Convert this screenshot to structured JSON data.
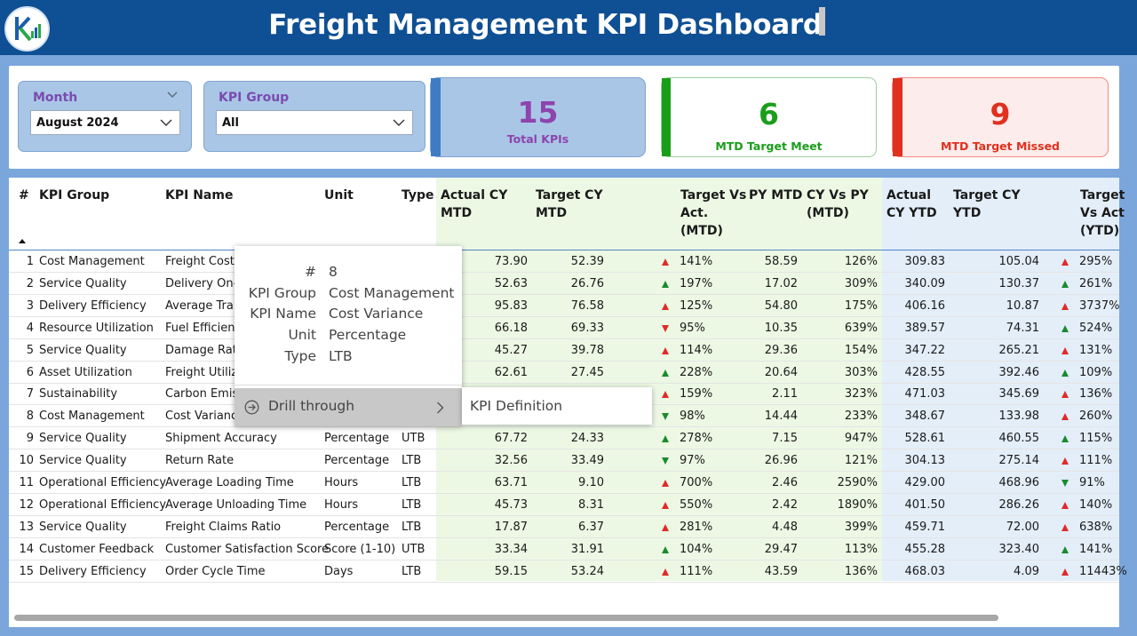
{
  "header": {
    "title": "Freight Management KPI Dashboard"
  },
  "slicers": {
    "month": {
      "label": "Month",
      "value": "August 2024"
    },
    "kpi_group": {
      "label": "KPI Group",
      "value": "All"
    }
  },
  "cards": {
    "total": {
      "value": "15",
      "label": "Total KPIs",
      "color": "#8e44ad"
    },
    "meet": {
      "value": "6",
      "label": "MTD Target Meet",
      "color": "#1a9e1a"
    },
    "missed": {
      "value": "9",
      "label": "MTD Target Missed",
      "color": "#e0301e"
    }
  },
  "table": {
    "headers": {
      "num": "#",
      "group": "KPI Group",
      "name": "KPI Name",
      "unit": "Unit",
      "type": "Type",
      "actual_mtd": [
        "Actual CY",
        "MTD"
      ],
      "target_mtd": [
        "Target CY",
        "MTD"
      ],
      "tva_mtd": [
        "Target Vs",
        "Act.",
        "(MTD)"
      ],
      "py_mtd": [
        "PY MTD"
      ],
      "cyvspy_mtd": [
        "CY Vs PY",
        "(MTD)"
      ],
      "actual_ytd": [
        "Actual",
        "CY YTD"
      ],
      "target_ytd": [
        "Target CY",
        "YTD"
      ],
      "tva_ytd": [
        "Target",
        "Vs Act",
        "(YTD)"
      ]
    },
    "rows": [
      {
        "num": "1",
        "group": "Cost Management",
        "name": "Freight Cost p",
        "unit": "",
        "type": "",
        "act_mtd": "73.90",
        "tgt_mtd": "52.39",
        "mtd_dir": "up-red",
        "tva_mtd": "141%",
        "py_mtd": "58.59",
        "cypy": "126%",
        "act_ytd": "309.83",
        "tgt_ytd": "105.04",
        "ytd_dir": "up-red",
        "tva_ytd": "295%"
      },
      {
        "num": "2",
        "group": "Service Quality",
        "name": "Delivery On-T",
        "unit": "",
        "type": "",
        "act_mtd": "52.63",
        "tgt_mtd": "26.76",
        "mtd_dir": "up-green",
        "tva_mtd": "197%",
        "py_mtd": "17.02",
        "cypy": "309%",
        "act_ytd": "340.09",
        "tgt_ytd": "130.37",
        "ytd_dir": "up-green",
        "tva_ytd": "261%"
      },
      {
        "num": "3",
        "group": "Delivery Efficiency",
        "name": "Average Tran",
        "unit": "",
        "type": "",
        "act_mtd": "95.83",
        "tgt_mtd": "76.58",
        "mtd_dir": "up-red",
        "tva_mtd": "125%",
        "py_mtd": "54.80",
        "cypy": "175%",
        "act_ytd": "406.16",
        "tgt_ytd": "10.87",
        "ytd_dir": "up-red",
        "tva_ytd": "3737%"
      },
      {
        "num": "4",
        "group": "Resource Utilization",
        "name": "Fuel Efficienc",
        "unit": "",
        "type": "",
        "act_mtd": "66.18",
        "tgt_mtd": "69.33",
        "mtd_dir": "down-red",
        "tva_mtd": "95%",
        "py_mtd": "10.35",
        "cypy": "639%",
        "act_ytd": "389.57",
        "tgt_ytd": "74.31",
        "ytd_dir": "up-green",
        "tva_ytd": "524%"
      },
      {
        "num": "5",
        "group": "Service Quality",
        "name": "Damage Rate",
        "unit": "",
        "type": "",
        "act_mtd": "45.27",
        "tgt_mtd": "39.78",
        "mtd_dir": "up-red",
        "tva_mtd": "114%",
        "py_mtd": "29.36",
        "cypy": "154%",
        "act_ytd": "347.22",
        "tgt_ytd": "265.21",
        "ytd_dir": "up-red",
        "tva_ytd": "131%"
      },
      {
        "num": "6",
        "group": "Asset Utilization",
        "name": "Freight Utiliz",
        "unit": "",
        "type": "",
        "act_mtd": "62.61",
        "tgt_mtd": "27.45",
        "mtd_dir": "up-green",
        "tva_mtd": "228%",
        "py_mtd": "20.64",
        "cypy": "303%",
        "act_ytd": "428.55",
        "tgt_ytd": "392.46",
        "ytd_dir": "up-green",
        "tva_ytd": "109%"
      },
      {
        "num": "7",
        "group": "Sustainability",
        "name": "Carbon Emiss",
        "unit": "",
        "type": "",
        "act_mtd": "",
        "tgt_mtd": "",
        "mtd_dir": "up-red",
        "tva_mtd": "159%",
        "py_mtd": "2.11",
        "cypy": "323%",
        "act_ytd": "471.03",
        "tgt_ytd": "345.69",
        "ytd_dir": "up-red",
        "tva_ytd": "136%"
      },
      {
        "num": "8",
        "group": "Cost Management",
        "name": "Cost Variance",
        "unit": "",
        "type": "",
        "act_mtd": "",
        "tgt_mtd": "",
        "mtd_dir": "down-green",
        "tva_mtd": "98%",
        "py_mtd": "14.44",
        "cypy": "233%",
        "act_ytd": "348.67",
        "tgt_ytd": "133.98",
        "ytd_dir": "up-red",
        "tva_ytd": "260%"
      },
      {
        "num": "9",
        "group": "Service Quality",
        "name": "Shipment Accuracy",
        "unit": "Percentage",
        "type": "UTB",
        "act_mtd": "67.72",
        "tgt_mtd": "24.33",
        "mtd_dir": "up-green",
        "tva_mtd": "278%",
        "py_mtd": "7.15",
        "cypy": "947%",
        "act_ytd": "528.61",
        "tgt_ytd": "460.55",
        "ytd_dir": "up-green",
        "tva_ytd": "115%"
      },
      {
        "num": "10",
        "group": "Service Quality",
        "name": "Return Rate",
        "unit": "Percentage",
        "type": "LTB",
        "act_mtd": "32.56",
        "tgt_mtd": "33.49",
        "mtd_dir": "down-green",
        "tva_mtd": "97%",
        "py_mtd": "26.96",
        "cypy": "121%",
        "act_ytd": "304.13",
        "tgt_ytd": "275.14",
        "ytd_dir": "up-red",
        "tva_ytd": "111%"
      },
      {
        "num": "11",
        "group": "Operational Efficiency",
        "name": "Average Loading Time",
        "unit": "Hours",
        "type": "LTB",
        "act_mtd": "63.71",
        "tgt_mtd": "9.10",
        "mtd_dir": "up-red",
        "tva_mtd": "700%",
        "py_mtd": "2.46",
        "cypy": "2590%",
        "act_ytd": "429.00",
        "tgt_ytd": "468.96",
        "ytd_dir": "down-green",
        "tva_ytd": "91%"
      },
      {
        "num": "12",
        "group": "Operational Efficiency",
        "name": "Average Unloading Time",
        "unit": "Hours",
        "type": "LTB",
        "act_mtd": "45.73",
        "tgt_mtd": "8.31",
        "mtd_dir": "up-red",
        "tva_mtd": "550%",
        "py_mtd": "2.42",
        "cypy": "1890%",
        "act_ytd": "401.50",
        "tgt_ytd": "286.26",
        "ytd_dir": "up-red",
        "tva_ytd": "140%"
      },
      {
        "num": "13",
        "group": "Service Quality",
        "name": "Freight Claims Ratio",
        "unit": "Percentage",
        "type": "LTB",
        "act_mtd": "17.87",
        "tgt_mtd": "6.37",
        "mtd_dir": "up-red",
        "tva_mtd": "281%",
        "py_mtd": "4.48",
        "cypy": "399%",
        "act_ytd": "459.71",
        "tgt_ytd": "72.00",
        "ytd_dir": "up-red",
        "tva_ytd": "638%"
      },
      {
        "num": "14",
        "group": "Customer Feedback",
        "name": "Customer Satisfaction Score",
        "unit": "Score (1-10)",
        "type": "UTB",
        "act_mtd": "33.34",
        "tgt_mtd": "31.91",
        "mtd_dir": "up-green",
        "tva_mtd": "104%",
        "py_mtd": "29.47",
        "cypy": "113%",
        "act_ytd": "455.28",
        "tgt_ytd": "323.40",
        "ytd_dir": "up-green",
        "tva_ytd": "141%"
      },
      {
        "num": "15",
        "group": "Delivery Efficiency",
        "name": "Order Cycle Time",
        "unit": "Days",
        "type": "LTB",
        "act_mtd": "59.15",
        "tgt_mtd": "53.24",
        "mtd_dir": "up-red",
        "tva_mtd": "111%",
        "py_mtd": "43.59",
        "cypy": "136%",
        "act_ytd": "468.03",
        "tgt_ytd": "4.09",
        "ytd_dir": "up-red",
        "tva_ytd": "11443%"
      }
    ]
  },
  "tooltip": {
    "fields": [
      {
        "key": "#",
        "value": "8"
      },
      {
        "key": "KPI Group",
        "value": "Cost Management"
      },
      {
        "key": "KPI Name",
        "value": "Cost Variance"
      },
      {
        "key": "Unit",
        "value": "Percentage"
      },
      {
        "key": "Type",
        "value": "LTB"
      }
    ],
    "drill_label": "Drill through",
    "submenu_item": "KPI Definition"
  },
  "icons": {
    "chevron": "chevron-down-icon",
    "drill": "drill-through-icon",
    "submenu_arrow": "chevron-right-icon"
  }
}
